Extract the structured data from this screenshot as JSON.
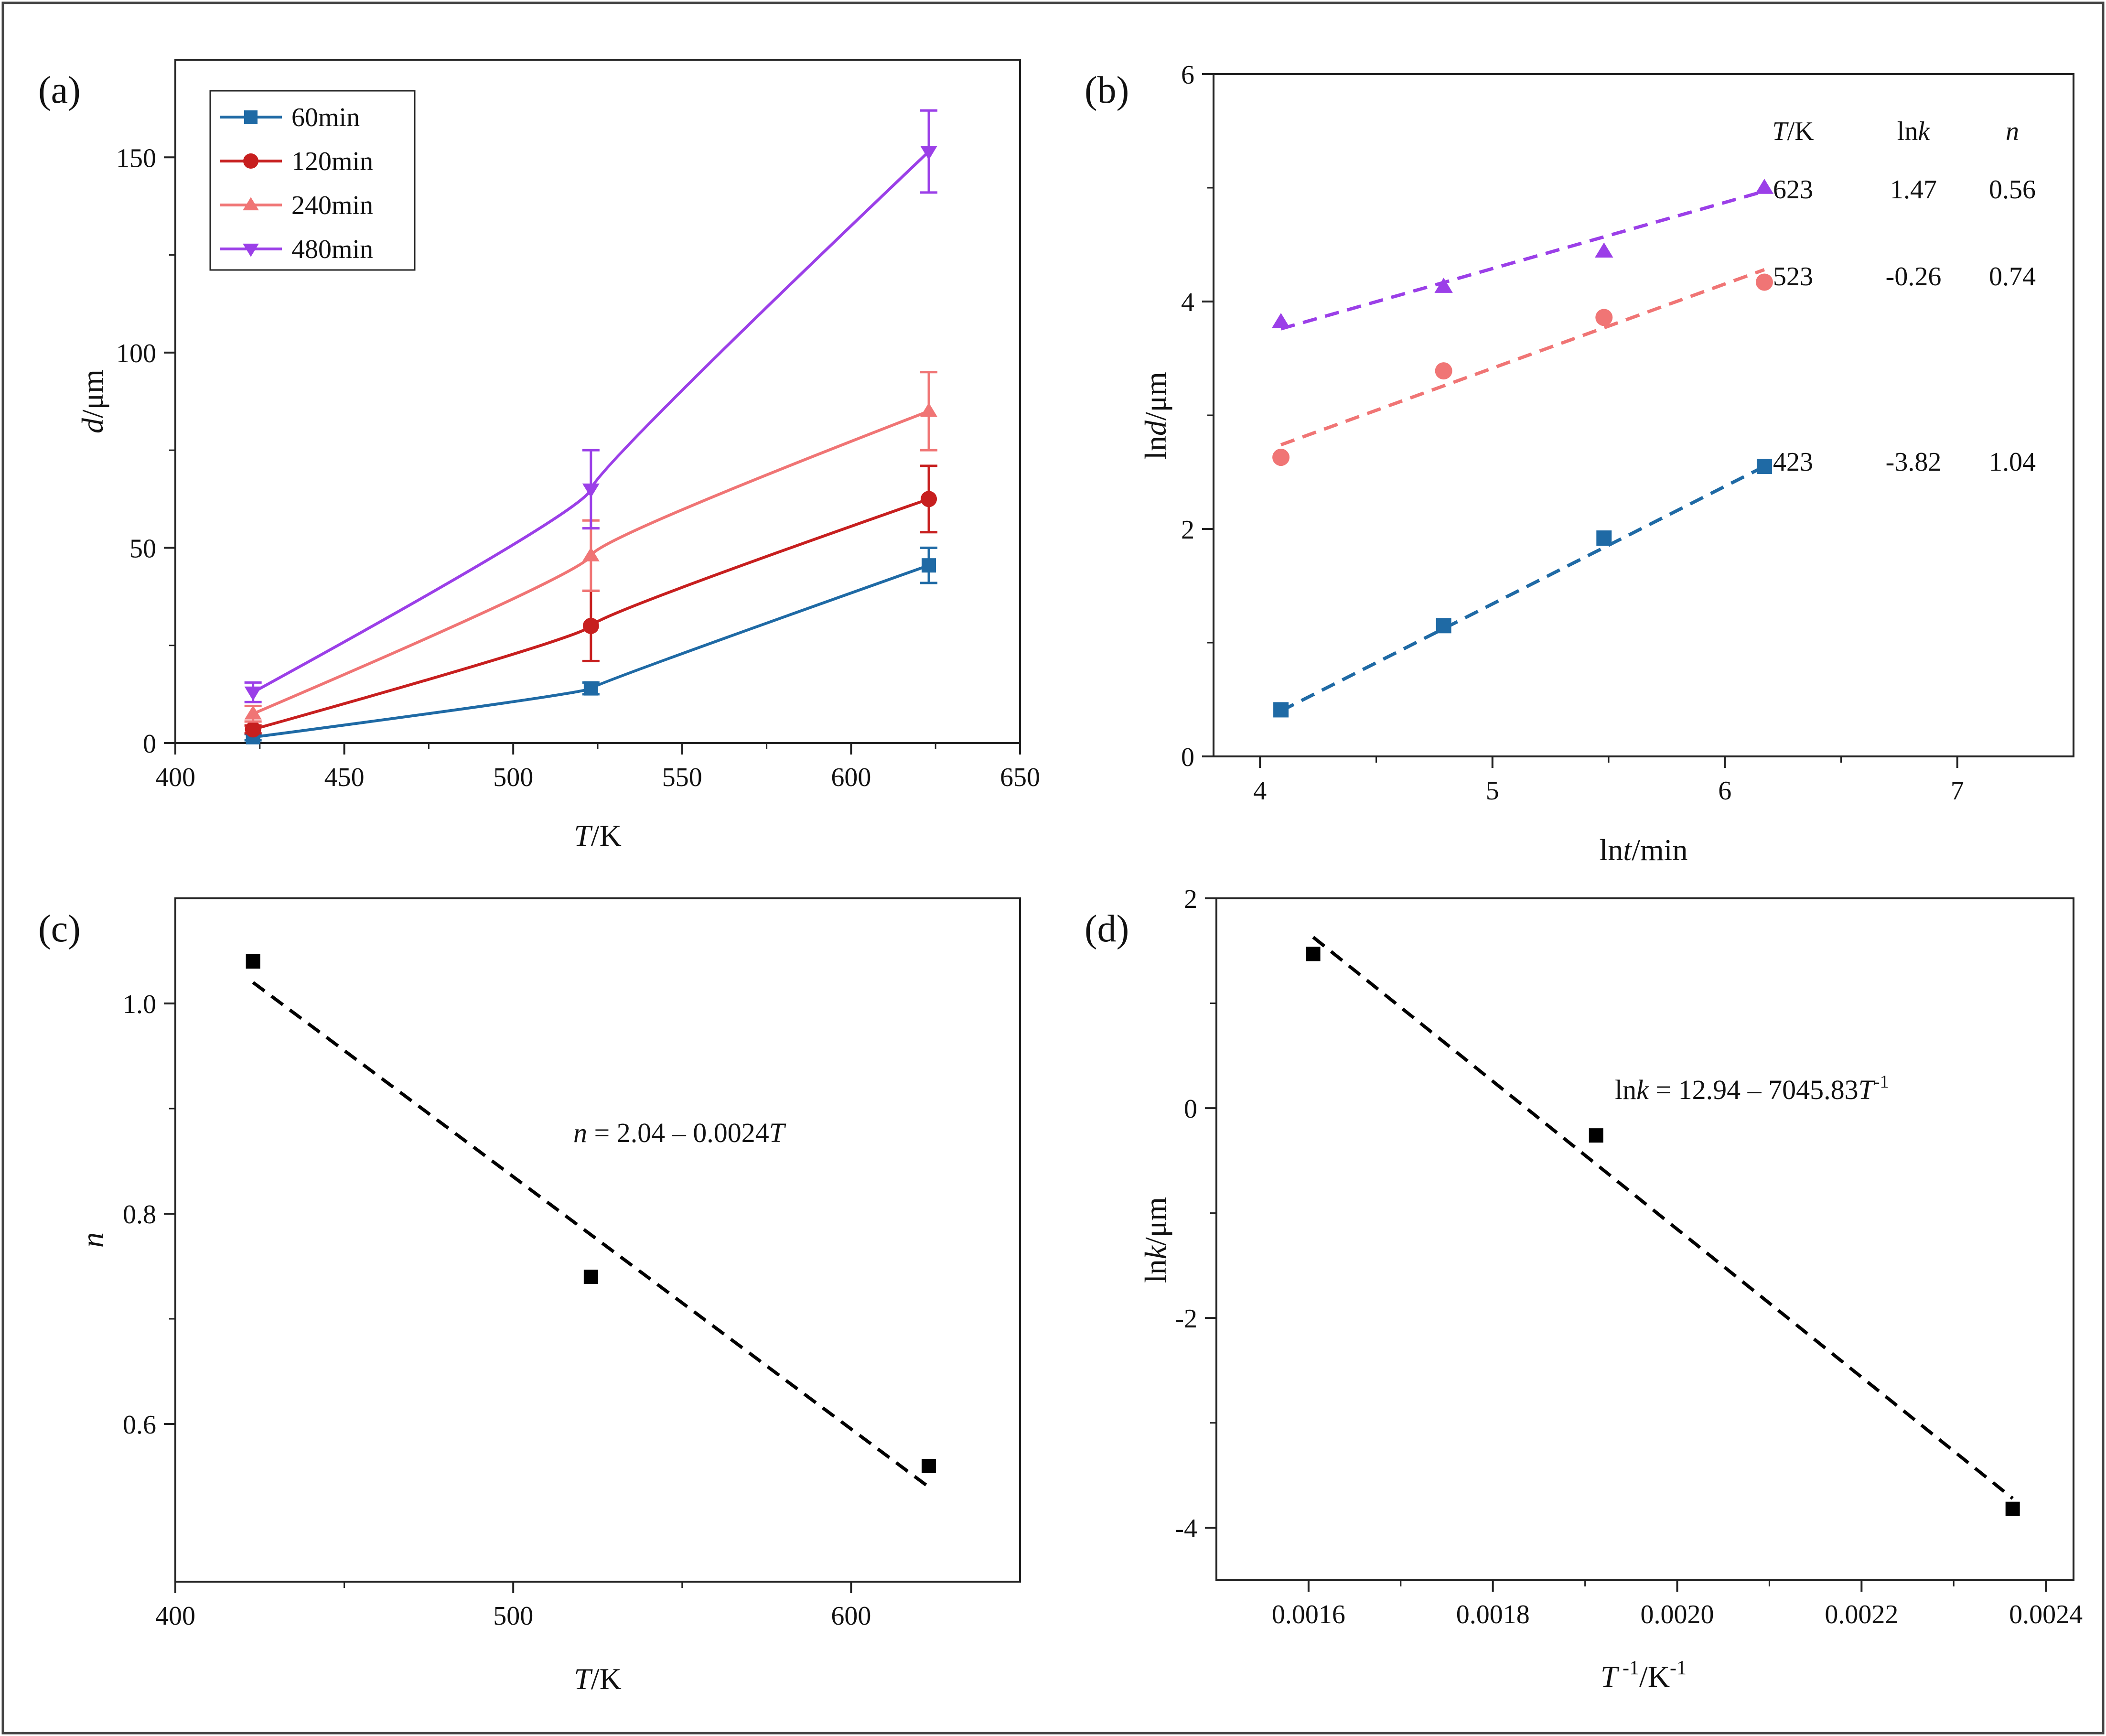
{
  "panels": [
    {
      "id": "a",
      "label": "(a)",
      "xlabel": {
        "italic": "T",
        "rest": "/K"
      },
      "ylabel": {
        "italic": "d",
        "rest": "/μm"
      }
    },
    {
      "id": "b",
      "label": "(b)",
      "xlabel": {
        "pre": "ln",
        "italic": "t",
        "rest": "/min"
      },
      "ylabel": {
        "pre": "ln",
        "italic": "d",
        "rest": "/μm"
      },
      "table": {
        "headers": [
          {
            "italic": "T",
            "rest": "/K"
          },
          {
            "pre": "ln",
            "italic": "k",
            "rest": ""
          },
          {
            "pre": "",
            "italic": "n",
            "rest": ""
          }
        ],
        "rows": [
          {
            "series": "623",
            "cells": [
              "623",
              "1.47",
              "0.56"
            ]
          },
          {
            "series": "523",
            "cells": [
              "523",
              "-0.26",
              "0.74"
            ]
          },
          {
            "series": "423",
            "cells": [
              "423",
              "-3.82",
              "1.04"
            ]
          }
        ]
      }
    },
    {
      "id": "c",
      "label": "(c)",
      "xlabel": {
        "italic": "T",
        "rest": "/K"
      },
      "ylabel": {
        "italic": "n",
        "rest": ""
      },
      "equation": {
        "lhs_italic": "n",
        "middle": " = 2.04 – 0.0024",
        "rhs_italic": "T"
      }
    },
    {
      "id": "d",
      "label": "(d)",
      "xlabel": {
        "italic": "T",
        "sup1": " -1",
        "mid": "/K",
        "sup2": "-1"
      },
      "ylabel": {
        "pre": "ln",
        "italic": "k",
        "rest": "/μm"
      },
      "equation": {
        "pre": "ln",
        "k": "k",
        "middle": " = 12.94 – 7045.83",
        "T": "T",
        "sup": "-1"
      }
    }
  ],
  "chart_data": [
    {
      "panel": "a",
      "type": "line",
      "xlim": [
        400,
        650
      ],
      "ylim": [
        0,
        175
      ],
      "xticks": [
        "400",
        "450",
        "500",
        "550",
        "600",
        "650"
      ],
      "yticks": [
        "0",
        "50",
        "100",
        "150"
      ],
      "legend_position": "top-left",
      "series": [
        {
          "name": "60min",
          "color": "#1f6aa5",
          "marker": "square",
          "points": [
            {
              "x": 423,
              "y": 1.5,
              "err": 0.8
            },
            {
              "x": 523,
              "y": 14,
              "err": 1.5
            },
            {
              "x": 623,
              "y": 45.5,
              "err": 4.5
            }
          ]
        },
        {
          "name": "120min",
          "color": "#c71f1f",
          "marker": "circle",
          "points": [
            {
              "x": 423,
              "y": 3.5,
              "err": 1.0
            },
            {
              "x": 523,
              "y": 30,
              "err": 9
            },
            {
              "x": 623,
              "y": 62.5,
              "err": 8.5
            }
          ]
        },
        {
          "name": "240min",
          "color": "#f07575",
          "marker": "triangle-up",
          "points": [
            {
              "x": 423,
              "y": 7.5,
              "err": 2.0
            },
            {
              "x": 523,
              "y": 48,
              "err": 9
            },
            {
              "x": 623,
              "y": 85,
              "err": 10
            }
          ]
        },
        {
          "name": "480min",
          "color": "#9b3fe8",
          "marker": "triangle-down",
          "points": [
            {
              "x": 423,
              "y": 13,
              "err": 2.5
            },
            {
              "x": 523,
              "y": 65,
              "err": 10
            },
            {
              "x": 623,
              "y": 151.5,
              "err": 10.5
            }
          ]
        }
      ]
    },
    {
      "panel": "b",
      "type": "scatter",
      "xlim": [
        3.8,
        7.5
      ],
      "ylim": [
        0,
        6
      ],
      "xticks": [
        "4",
        "5",
        "6",
        "7"
      ],
      "yticks": [
        "0",
        "2",
        "4",
        "6"
      ],
      "series": [
        {
          "name": "623",
          "color": "#9b3fe8",
          "marker": "triangle-up",
          "x": [
            4.09,
            4.79,
            5.48,
            6.17
          ],
          "y": [
            3.82,
            4.13,
            4.44,
            5.0
          ],
          "fit": {
            "x": [
              4.09,
              6.17
            ],
            "y": [
              3.76,
              4.97
            ]
          }
        },
        {
          "name": "523",
          "color": "#f07575",
          "marker": "circle",
          "x": [
            4.09,
            4.79,
            5.48,
            6.17
          ],
          "y": [
            2.63,
            3.39,
            3.86,
            4.17
          ],
          "fit": {
            "x": [
              4.09,
              6.17
            ],
            "y": [
              2.74,
              4.28
            ]
          }
        },
        {
          "name": "423",
          "color": "#1f6aa5",
          "marker": "square",
          "x": [
            4.09,
            4.79,
            5.48,
            6.17
          ],
          "y": [
            0.41,
            1.15,
            1.92,
            2.55
          ],
          "fit": {
            "x": [
              4.09,
              6.17
            ],
            "y": [
              0.4,
              2.55
            ]
          }
        }
      ]
    },
    {
      "panel": "c",
      "type": "scatter",
      "xlim": [
        400,
        650
      ],
      "ylim": [
        0.45,
        1.1
      ],
      "xticks": [
        "400",
        "500",
        "600"
      ],
      "yticks": [
        "0.6",
        "0.8",
        "1.0"
      ],
      "series": [
        {
          "color": "#000000",
          "marker": "square",
          "x": [
            423,
            523,
            623
          ],
          "y": [
            1.04,
            0.74,
            0.56
          ],
          "fit": {
            "x": [
              423,
              623
            ],
            "y": [
              1.02,
              0.54
            ]
          }
        }
      ]
    },
    {
      "panel": "d",
      "type": "scatter",
      "xlim": [
        0.0015,
        0.00243
      ],
      "ylim": [
        -4.5,
        2
      ],
      "xticks": [
        "0.0016",
        "0.0018",
        "0.0020",
        "0.0022",
        "0.0024"
      ],
      "yticks": [
        "-4",
        "-2",
        "0",
        "2"
      ],
      "series": [
        {
          "color": "#000000",
          "marker": "square",
          "x": [
            0.001605,
            0.001912,
            0.002364
          ],
          "y": [
            1.47,
            -0.26,
            -3.82
          ],
          "fit": {
            "x": [
              0.001605,
              0.002364
            ],
            "y": [
              1.63,
              -3.72
            ]
          }
        }
      ]
    }
  ]
}
